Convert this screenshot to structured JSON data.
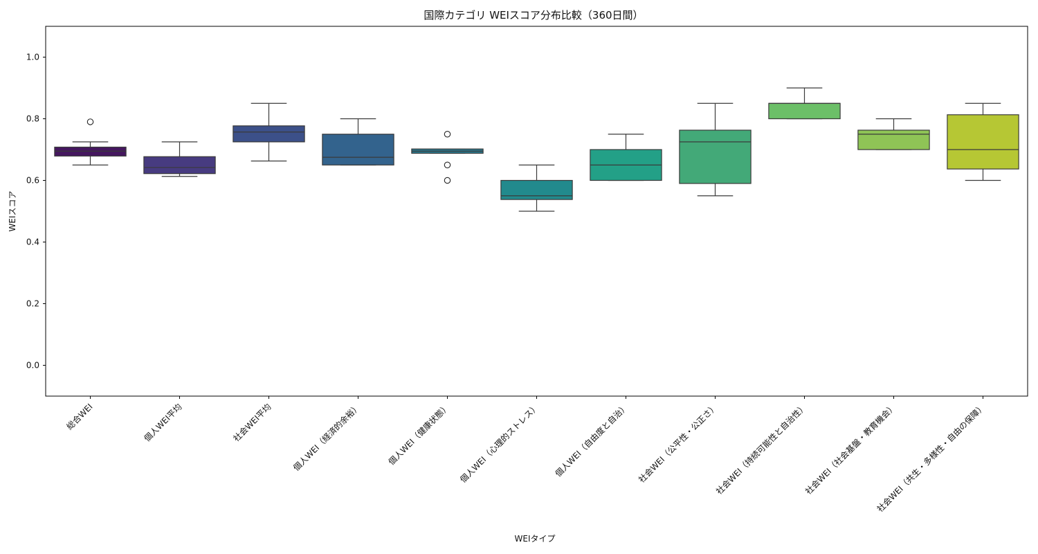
{
  "chart_data": {
    "type": "box",
    "title": "国際カテゴリ WEIスコア分布比較（360日間）",
    "xlabel": "WEIタイプ",
    "ylabel": "WEIスコア",
    "ylim": [
      -0.1,
      1.1
    ],
    "yticks": [
      "0.0",
      "0.2",
      "0.4",
      "0.6",
      "0.8",
      "1.0"
    ],
    "grid": false,
    "legend": "none",
    "categories": [
      "総合WEI",
      "個人WEI平均",
      "社会WEI平均",
      "個人WEI（経済的余裕）",
      "個人WEI（健康状態）",
      "個人WEI（心理的ストレス）",
      "個人WEI（自由度と自治）",
      "社会WEI（公平性・公正さ）",
      "社会WEI（持続可能性と自治性）",
      "社会WEI（社会基盤・教育機会）",
      "社会WEI（共生・多様性・自由の保障）"
    ],
    "boxes": [
      {
        "whisker_low": 0.65,
        "q1": 0.679,
        "median": 0.695,
        "q3": 0.708,
        "whisker_high": 0.725,
        "outliers": [
          0.79
        ],
        "color": "#45175f"
      },
      {
        "whisker_low": 0.613,
        "q1": 0.622,
        "median": 0.642,
        "q3": 0.677,
        "whisker_high": 0.725,
        "outliers": [],
        "color": "#473b80"
      },
      {
        "whisker_low": 0.663,
        "q1": 0.725,
        "median": 0.757,
        "q3": 0.777,
        "whisker_high": 0.85,
        "outliers": [],
        "color": "#3c5089"
      },
      {
        "whisker_low": 0.65,
        "q1": 0.65,
        "median": 0.675,
        "q3": 0.75,
        "whisker_high": 0.8,
        "outliers": [],
        "color": "#33638d"
      },
      {
        "whisker_low": 0.688,
        "q1": 0.688,
        "median": 0.695,
        "q3": 0.702,
        "whisker_high": 0.702,
        "outliers": [
          0.75,
          0.65,
          0.6
        ],
        "color": "#29788e"
      },
      {
        "whisker_low": 0.5,
        "q1": 0.538,
        "median": 0.55,
        "q3": 0.6,
        "whisker_high": 0.65,
        "outliers": [],
        "color": "#228a8d"
      },
      {
        "whisker_low": 0.6,
        "q1": 0.6,
        "median": 0.65,
        "q3": 0.7,
        "whisker_high": 0.75,
        "outliers": [],
        "color": "#23a087"
      },
      {
        "whisker_low": 0.55,
        "q1": 0.59,
        "median": 0.725,
        "q3": 0.763,
        "whisker_high": 0.85,
        "outliers": [],
        "color": "#43a978"
      },
      {
        "whisker_low": 0.8,
        "q1": 0.8,
        "median": 0.85,
        "q3": 0.85,
        "whisker_high": 0.9,
        "outliers": [],
        "color": "#6cbf68"
      },
      {
        "whisker_low": 0.7,
        "q1": 0.7,
        "median": 0.75,
        "q3": 0.763,
        "whisker_high": 0.8,
        "outliers": [],
        "color": "#8fc456"
      },
      {
        "whisker_low": 0.6,
        "q1": 0.637,
        "median": 0.7,
        "q3": 0.813,
        "whisker_high": 0.85,
        "outliers": [],
        "color": "#b6c734"
      }
    ]
  }
}
